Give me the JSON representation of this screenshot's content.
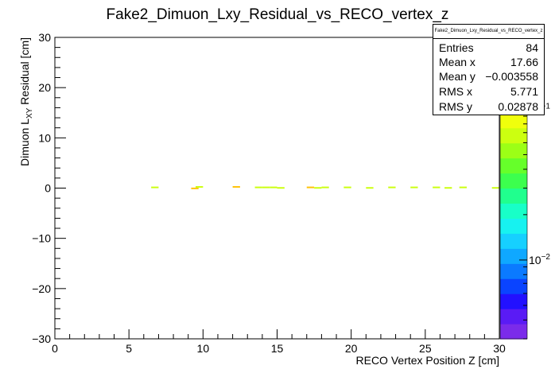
{
  "chart_data": {
    "type": "heatmap",
    "title": "Fake2_Dimuon_Lxy_Residual_vs_RECO_vertex_z",
    "xlabel": "RECO Vertex Position Z [cm]",
    "ylabel_main": "Dimuon L",
    "ylabel_sub": "XY",
    "ylabel_tail": " Residual [cm]",
    "xlim": [
      0,
      30
    ],
    "ylim": [
      -30,
      30
    ],
    "x_ticks": [
      {
        "value": 0,
        "label": "0"
      },
      {
        "value": 5,
        "label": "5"
      },
      {
        "value": 10,
        "label": "10"
      },
      {
        "value": 15,
        "label": "15"
      },
      {
        "value": 20,
        "label": "20"
      },
      {
        "value": 25,
        "label": "25"
      },
      {
        "value": 30,
        "label": "30"
      }
    ],
    "y_ticks": [
      {
        "value": 30,
        "label": "30"
      },
      {
        "value": 20,
        "label": "20"
      },
      {
        "value": 10,
        "label": "10"
      },
      {
        "value": 0,
        "label": "0"
      },
      {
        "value": -10,
        "label": "−10"
      },
      {
        "value": -20,
        "label": "−20"
      },
      {
        "value": -30,
        "label": "−30"
      }
    ],
    "bin_width_x": 0.5,
    "bin_height_y": 0.3,
    "z_scale": "log",
    "zlim": [
      0.003,
      0.3
    ],
    "z_ticks": [
      {
        "value": 0.1,
        "label": "10",
        "exp": "−1"
      },
      {
        "value": 0.01,
        "label": "10",
        "exp": "−2"
      }
    ],
    "palette": [
      "#7b2bea",
      "#5a1bf5",
      "#2211ff",
      "#0a44ff",
      "#0b7aff",
      "#0fa8ff",
      "#16d0ff",
      "#17f2f0",
      "#18ffc8",
      "#20ff8e",
      "#3cff4e",
      "#66ff2a",
      "#9cff16",
      "#ccff10",
      "#f0ff0c",
      "#ffee0a",
      "#ffc30a",
      "#ff8e0c",
      "#ff5a10",
      "#ff2614"
    ],
    "bins": [
      {
        "x": 6.5,
        "y": 0.0,
        "z": 0.07
      },
      {
        "x": 9.2,
        "y": -0.2,
        "z": 0.12
      },
      {
        "x": 9.5,
        "y": 0.1,
        "z": 0.07
      },
      {
        "x": 12.0,
        "y": 0.1,
        "z": 0.12
      },
      {
        "x": 13.5,
        "y": 0.0,
        "z": 0.07
      },
      {
        "x": 14.0,
        "y": 0.0,
        "z": 0.07
      },
      {
        "x": 14.5,
        "y": 0.0,
        "z": 0.07
      },
      {
        "x": 15.0,
        "y": -0.1,
        "z": 0.07
      },
      {
        "x": 17.0,
        "y": 0.0,
        "z": 0.12
      },
      {
        "x": 17.5,
        "y": -0.1,
        "z": 0.07
      },
      {
        "x": 18.0,
        "y": 0.0,
        "z": 0.07
      },
      {
        "x": 19.5,
        "y": 0.0,
        "z": 0.07
      },
      {
        "x": 21.0,
        "y": -0.1,
        "z": 0.07
      },
      {
        "x": 22.5,
        "y": 0.0,
        "z": 0.07
      },
      {
        "x": 24.0,
        "y": 0.0,
        "z": 0.07
      },
      {
        "x": 25.5,
        "y": 0.0,
        "z": 0.07
      },
      {
        "x": 26.3,
        "y": -0.1,
        "z": 0.07
      },
      {
        "x": 27.3,
        "y": 0.0,
        "z": 0.07
      },
      {
        "x": 29.5,
        "y": -0.1,
        "z": 0.07
      }
    ]
  },
  "stats": {
    "title": "Fake2_Dimuon_Lxy_Residual_vs_RECO_vertex_z",
    "rows": [
      {
        "key": "Entries",
        "value": "84"
      },
      {
        "key": "Mean x",
        "value": "17.66"
      },
      {
        "key": "Mean y",
        "value": "−0.003558"
      },
      {
        "key": "RMS x",
        "value": "5.771"
      },
      {
        "key": "RMS y",
        "value": "0.02878"
      }
    ]
  }
}
